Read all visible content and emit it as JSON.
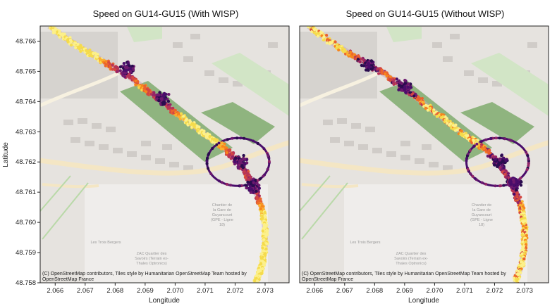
{
  "chart_data": [
    {
      "type": "scatter",
      "title": "Speed on GU14-GU15 (With WISP)",
      "xlabel": "Longitude",
      "ylabel": "Latitude",
      "xlim": [
        2.0655,
        2.0738
      ],
      "ylim": [
        48.758,
        48.7665
      ],
      "xticks": [
        "2.066",
        "2.067",
        "2.068",
        "2.069",
        "2.070",
        "2.071",
        "2.072",
        "2.073"
      ],
      "yticks": [
        "48.758",
        "48.759",
        "48.760",
        "48.761",
        "48.762",
        "48.763",
        "48.764",
        "48.765",
        "48.766"
      ],
      "attribution": [
        "(C) OpenStreetMap contributors, Tiles style by Humanitarian OpenStreetMap Team hosted by",
        "OpenStreetMap France"
      ],
      "basemap_labels": [
        "Chantier de la Gare de Guyancourt (GPE - Ligne 18)",
        "ZAC Quartier des Savoirs (Terrain ex-Thales Optronics)",
        "Les Trois Bergers"
      ],
      "track": [
        [
          2.0658,
          48.7665
        ],
        [
          2.0665,
          48.766
        ],
        [
          2.0675,
          48.7654
        ],
        [
          2.0685,
          48.7648
        ],
        [
          2.0693,
          48.7642
        ],
        [
          2.0702,
          48.7635
        ],
        [
          2.071,
          48.7629
        ],
        [
          2.0716,
          48.7625
        ],
        [
          2.0722,
          48.7619
        ],
        [
          2.0726,
          48.7612
        ],
        [
          2.0729,
          48.7605
        ],
        [
          2.073,
          48.7598
        ],
        [
          2.073,
          48.7592
        ],
        [
          2.0729,
          48.7586
        ],
        [
          2.0727,
          48.758
        ]
      ],
      "slow_cluster_centers": [
        [
          2.0684,
          48.7651
        ],
        [
          2.0696,
          48.7641
        ],
        [
          2.0722,
          48.762
        ],
        [
          2.0726,
          48.7612
        ]
      ],
      "roundabout": {
        "center": [
          2.0721,
          48.762
        ],
        "radius_deg": 0.0004
      },
      "colorscale": "inferno (dark = slow, yellow = fast)"
    },
    {
      "type": "scatter",
      "title": "Speed on GU14-GU15 (Without WISP)",
      "xlabel": "Longitude",
      "ylabel": "",
      "xlim": [
        2.0655,
        2.0738
      ],
      "ylim": [
        48.758,
        48.7665
      ],
      "xticks": [
        "2.066",
        "2.067",
        "2.068",
        "2.069",
        "2.070",
        "2.071",
        "2.072",
        "2.073"
      ],
      "yticks": [],
      "attribution": [
        "(C) OpenStreetMap contributors, Tiles style by Humanitarian OpenStreetMap Team hosted by",
        "OpenStreetMap France"
      ],
      "basemap_labels": [
        "Chantier de la Gare de Guyancourt (GPE - Ligne 18)",
        "ZAC Quartier des Savoirs (Terrain ex-Thales Optronics)",
        "Les Trois Bergers"
      ],
      "track": [
        [
          2.0658,
          48.7665
        ],
        [
          2.0665,
          48.766
        ],
        [
          2.0675,
          48.7654
        ],
        [
          2.0685,
          48.7648
        ],
        [
          2.0693,
          48.7642
        ],
        [
          2.0702,
          48.7635
        ],
        [
          2.071,
          48.7629
        ],
        [
          2.0716,
          48.7625
        ],
        [
          2.0722,
          48.7619
        ],
        [
          2.0726,
          48.7612
        ],
        [
          2.0729,
          48.7605
        ],
        [
          2.073,
          48.7598
        ],
        [
          2.073,
          48.7592
        ],
        [
          2.0729,
          48.7586
        ],
        [
          2.0727,
          48.758
        ]
      ],
      "slow_cluster_centers": [
        [
          2.0678,
          48.7652
        ],
        [
          2.069,
          48.7645
        ],
        [
          2.0722,
          48.762
        ],
        [
          2.0727,
          48.7613
        ]
      ],
      "roundabout": {
        "center": [
          2.0721,
          48.762
        ],
        "radius_deg": 0.0004
      },
      "colorscale": "inferno (dark = slow, yellow = fast)"
    }
  ],
  "colors": {
    "map_bg": "#e6e3df",
    "park": "#cfe3c4",
    "park_dark": "#8fb47f",
    "road_main": "#f6e9c9",
    "building": "#d8d5d1",
    "fast": "#fcd35a",
    "mid": "#e3573a",
    "slow": "#35125e"
  }
}
